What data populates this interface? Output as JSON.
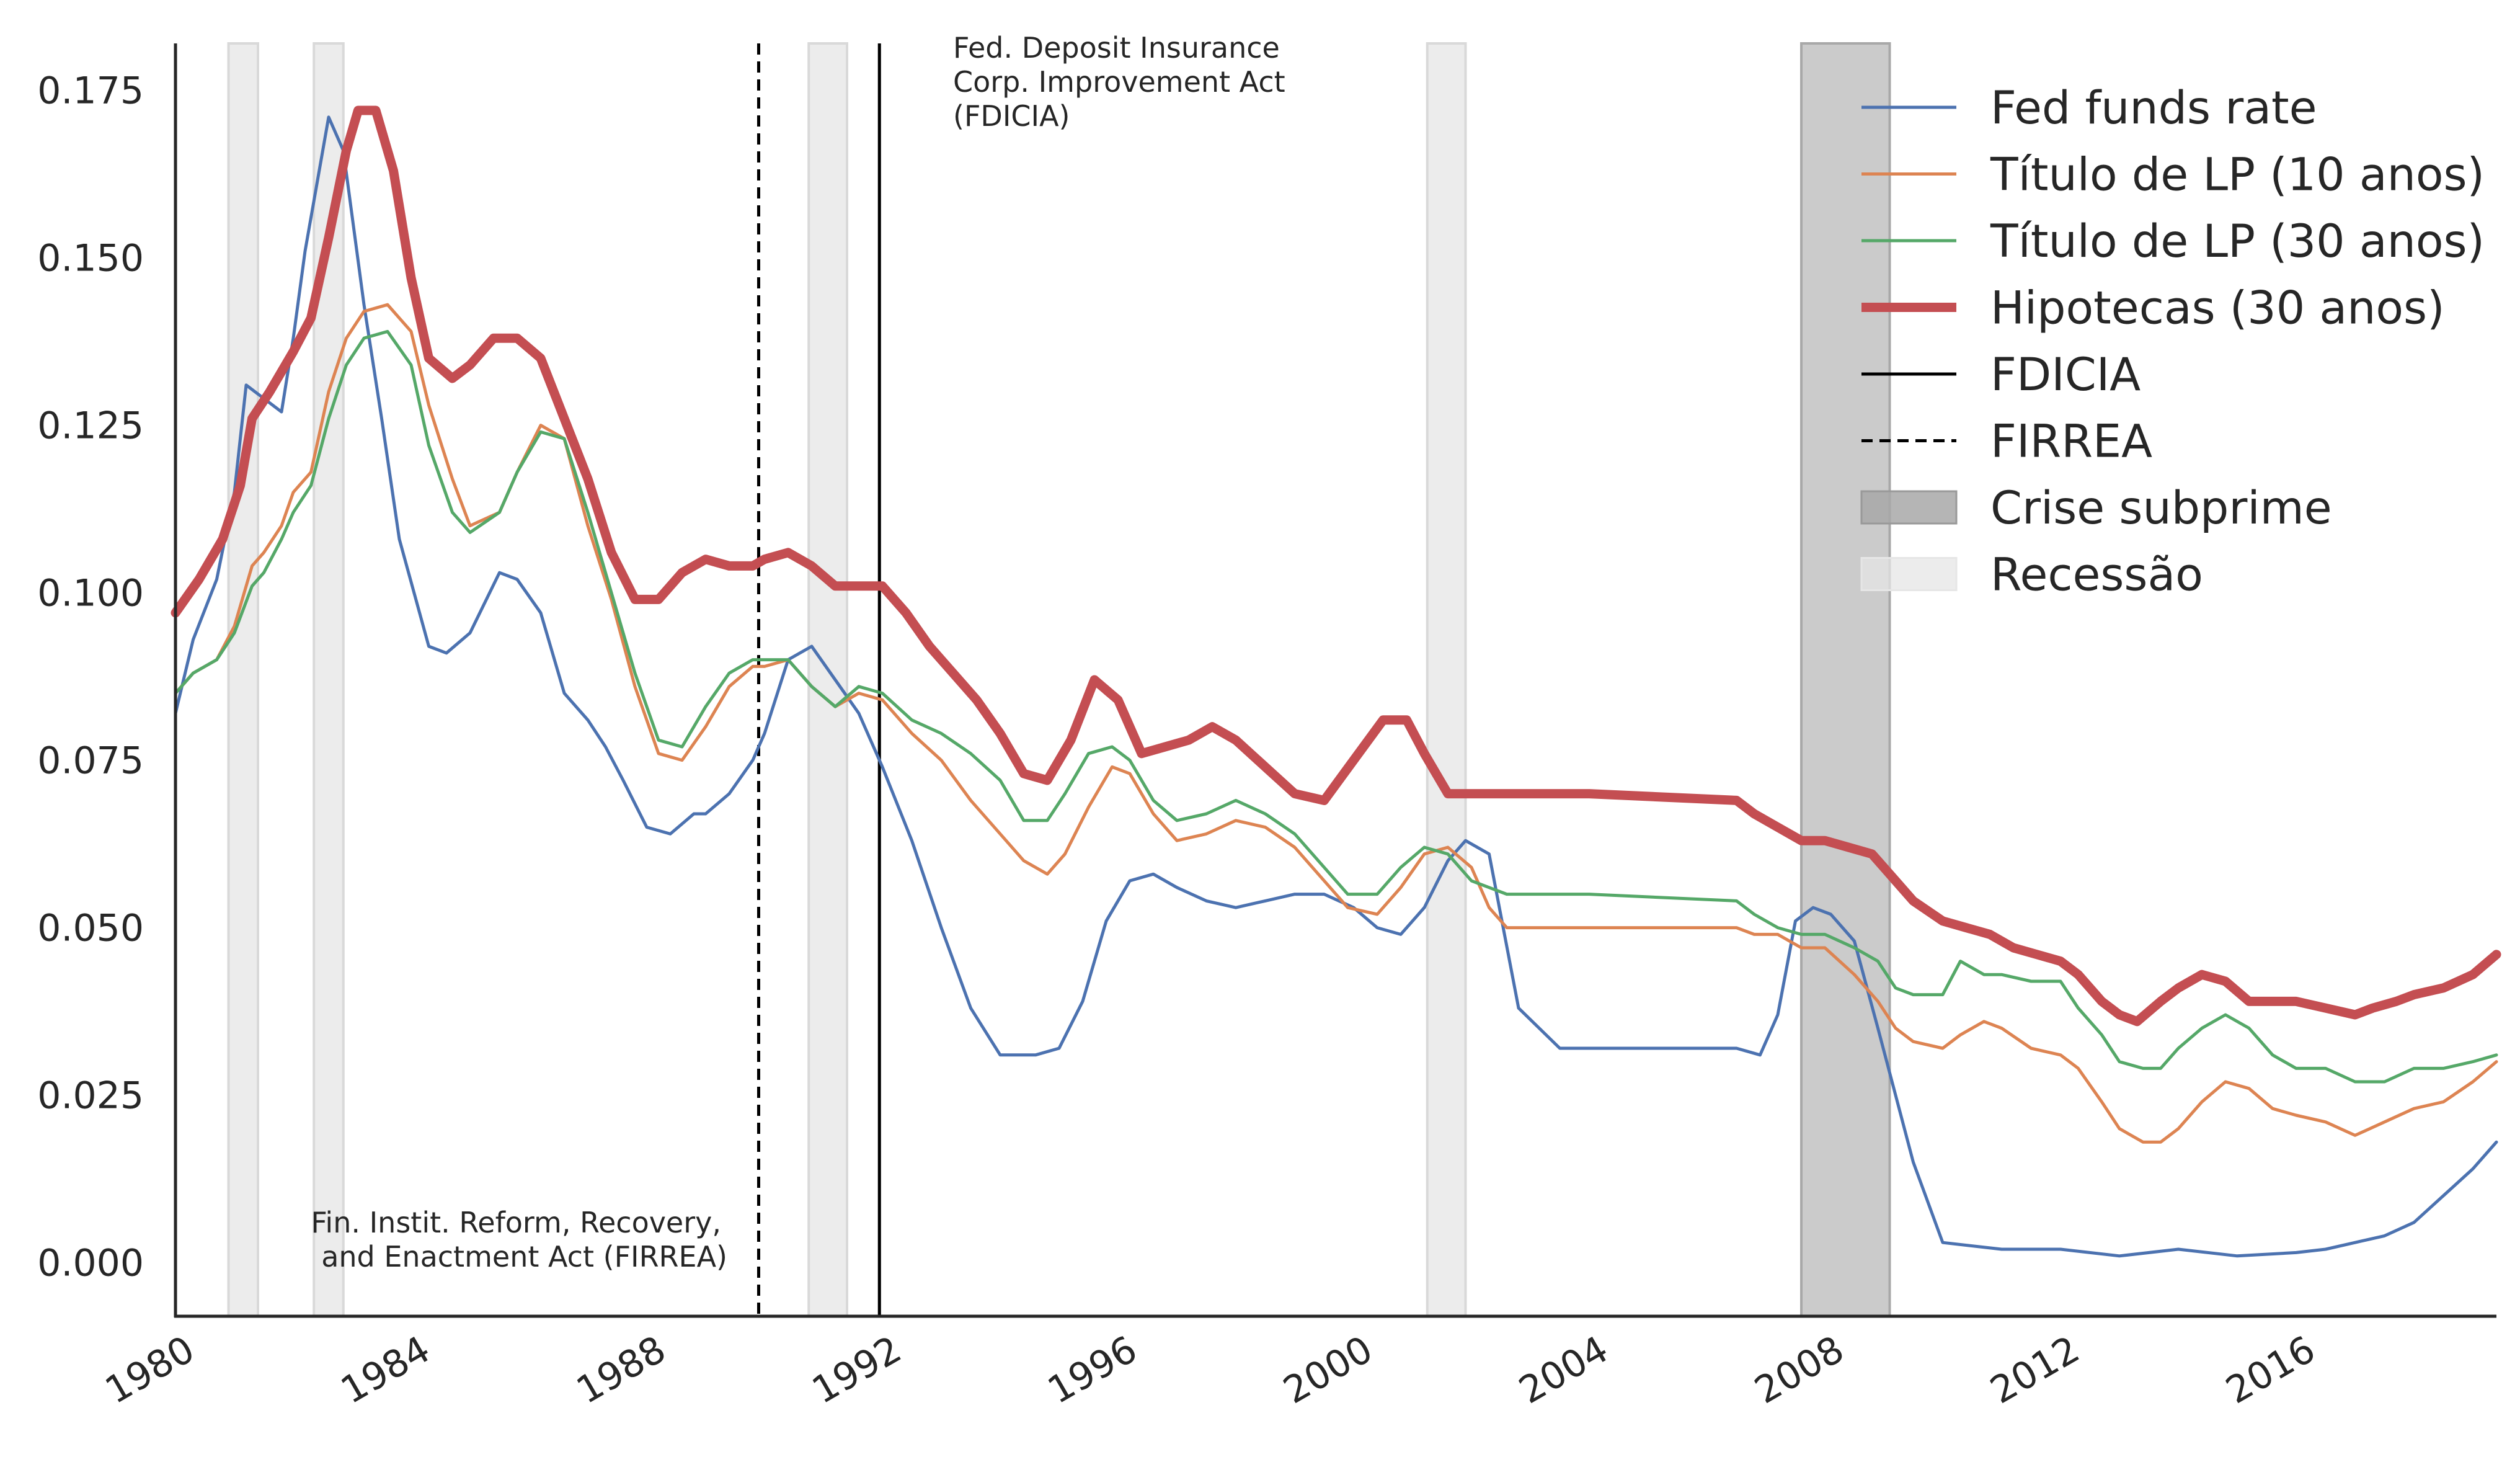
{
  "chart_data": {
    "type": "line",
    "title": "",
    "xlabel": "",
    "ylabel": "",
    "xlim": [
      1980.0,
      2019.4
    ],
    "ylim": [
      -0.008,
      0.182
    ],
    "x_ticks": [
      1980,
      1984,
      1988,
      1992,
      1996,
      2000,
      2004,
      2008,
      2012,
      2016
    ],
    "y_ticks": [
      0.0,
      0.025,
      0.05,
      0.075,
      0.1,
      0.125,
      0.15,
      0.175
    ],
    "y_tick_labels": [
      "0.000",
      "0.025",
      "0.050",
      "0.075",
      "0.100",
      "0.125",
      "0.150",
      "0.175"
    ],
    "grid": false,
    "legend_position": "top-right",
    "series": [
      {
        "name": "Fed funds rate",
        "color": "#4c72b0",
        "x": [
          1980.0,
          1980.3,
          1980.7,
          1981.0,
          1981.2,
          1981.5,
          1981.8,
          1982.0,
          1982.2,
          1982.6,
          1982.85,
          1983.2,
          1983.5,
          1983.8,
          1984.3,
          1984.6,
          1985.0,
          1985.5,
          1985.8,
          1986.2,
          1986.6,
          1987.0,
          1987.3,
          1987.6,
          1988.0,
          1988.4,
          1988.8,
          1989.0,
          1989.4,
          1989.8,
          1990.0,
          1990.4,
          1990.8,
          1991.2,
          1991.6,
          1992.0,
          1992.5,
          1993.0,
          1993.5,
          1994.0,
          1994.6,
          1995.0,
          1995.4,
          1995.8,
          1996.2,
          1996.6,
          1997.0,
          1997.5,
          1998.0,
          1998.5,
          1999.0,
          1999.5,
          2000.0,
          2000.4,
          2000.8,
          2001.2,
          2001.6,
          2001.9,
          2002.3,
          2002.8,
          2003.5,
          2005.0,
          2006.5,
          2006.9,
          2007.2,
          2007.5,
          2007.8,
          2008.1,
          2008.5,
          2008.9,
          2009.2,
          2009.5,
          2010.0,
          2011.0,
          2012.0,
          2013.0,
          2014.0,
          2015.0,
          2016.0,
          2016.5,
          2017.0,
          2017.5,
          2018.0,
          2018.5,
          2019.0,
          2019.4
        ],
        "values": [
          0.082,
          0.093,
          0.102,
          0.115,
          0.131,
          0.129,
          0.127,
          0.138,
          0.151,
          0.171,
          0.166,
          0.143,
          0.126,
          0.108,
          0.092,
          0.091,
          0.094,
          0.103,
          0.102,
          0.097,
          0.085,
          0.081,
          0.077,
          0.072,
          0.065,
          0.064,
          0.067,
          0.067,
          0.07,
          0.075,
          0.079,
          0.09,
          0.092,
          0.087,
          0.082,
          0.074,
          0.063,
          0.05,
          0.038,
          0.031,
          0.031,
          0.032,
          0.039,
          0.051,
          0.057,
          0.058,
          0.056,
          0.054,
          0.053,
          0.054,
          0.055,
          0.055,
          0.053,
          0.05,
          0.049,
          0.053,
          0.06,
          0.063,
          0.061,
          0.038,
          0.032,
          0.032,
          0.032,
          0.031,
          0.037,
          0.051,
          0.053,
          0.052,
          0.048,
          0.035,
          0.025,
          0.015,
          0.003,
          0.002,
          0.002,
          0.001,
          0.002,
          0.001,
          0.0015,
          0.002,
          0.003,
          0.004,
          0.006,
          0.01,
          0.014,
          0.018
        ]
      },
      {
        "name": "Título de LP (10 anos)",
        "color": "#dd8452",
        "x": [
          1980.0,
          1980.3,
          1980.7,
          1981.0,
          1981.3,
          1981.5,
          1981.8,
          1982.0,
          1982.3,
          1982.6,
          1982.9,
          1983.2,
          1983.6,
          1984.0,
          1984.3,
          1984.7,
          1985.0,
          1985.5,
          1985.8,
          1986.2,
          1986.6,
          1987.0,
          1987.4,
          1987.8,
          1988.2,
          1988.6,
          1989.0,
          1989.4,
          1989.8,
          1990.0,
          1990.4,
          1990.8,
          1991.2,
          1991.6,
          1992.0,
          1992.5,
          1993.0,
          1993.5,
          1994.0,
          1994.4,
          1994.8,
          1995.1,
          1995.5,
          1995.9,
          1996.2,
          1996.6,
          1997.0,
          1997.5,
          1998.0,
          1998.5,
          1999.0,
          1999.5,
          1999.9,
          2000.4,
          2000.8,
          2001.2,
          2001.6,
          2002.0,
          2002.3,
          2002.6,
          2004.0,
          2006.5,
          2006.8,
          2007.2,
          2007.6,
          2008.0,
          2008.5,
          2008.9,
          2009.2,
          2009.5,
          2010.0,
          2010.3,
          2010.7,
          2011.0,
          2011.5,
          2012.0,
          2012.3,
          2012.7,
          2013.0,
          2013.4,
          2013.7,
          2014.0,
          2014.4,
          2014.8,
          2015.2,
          2015.6,
          2016.0,
          2016.5,
          2017.0,
          2017.5,
          2018.0,
          2018.5,
          2019.0,
          2019.4
        ],
        "values": [
          0.085,
          0.088,
          0.09,
          0.095,
          0.104,
          0.106,
          0.11,
          0.115,
          0.118,
          0.13,
          0.138,
          0.142,
          0.143,
          0.139,
          0.128,
          0.117,
          0.11,
          0.112,
          0.118,
          0.125,
          0.123,
          0.11,
          0.099,
          0.086,
          0.076,
          0.075,
          0.08,
          0.086,
          0.089,
          0.089,
          0.09,
          0.086,
          0.083,
          0.085,
          0.084,
          0.079,
          0.075,
          0.069,
          0.064,
          0.06,
          0.058,
          0.061,
          0.068,
          0.074,
          0.073,
          0.067,
          0.063,
          0.064,
          0.066,
          0.065,
          0.062,
          0.057,
          0.053,
          0.052,
          0.056,
          0.061,
          0.062,
          0.059,
          0.053,
          0.05,
          0.05,
          0.05,
          0.049,
          0.049,
          0.047,
          0.047,
          0.043,
          0.039,
          0.035,
          0.033,
          0.032,
          0.034,
          0.036,
          0.035,
          0.032,
          0.031,
          0.029,
          0.024,
          0.02,
          0.018,
          0.018,
          0.02,
          0.024,
          0.027,
          0.026,
          0.023,
          0.022,
          0.021,
          0.019,
          0.021,
          0.023,
          0.024,
          0.027,
          0.03
        ]
      },
      {
        "name": "Título de LP (30 anos)",
        "color": "#55a868",
        "x": [
          1980.0,
          1980.3,
          1980.7,
          1981.0,
          1981.3,
          1981.5,
          1981.8,
          1982.0,
          1982.3,
          1982.6,
          1982.9,
          1983.2,
          1983.6,
          1984.0,
          1984.3,
          1984.7,
          1985.0,
          1985.5,
          1985.8,
          1986.2,
          1986.6,
          1987.0,
          1987.4,
          1987.8,
          1988.2,
          1988.6,
          1989.0,
          1989.4,
          1989.8,
          1990.0,
          1990.4,
          1990.8,
          1991.2,
          1991.6,
          1992.0,
          1992.5,
          1993.0,
          1993.5,
          1994.0,
          1994.4,
          1994.8,
          1995.1,
          1995.5,
          1995.9,
          1996.2,
          1996.6,
          1997.0,
          1997.5,
          1998.0,
          1998.5,
          1999.0,
          1999.5,
          1999.9,
          2000.4,
          2000.8,
          2001.2,
          2001.6,
          2002.0,
          2002.3,
          2002.6,
          2004.0,
          2006.5,
          2006.8,
          2007.2,
          2007.6,
          2008.0,
          2008.5,
          2008.9,
          2009.2,
          2009.5,
          2010.0,
          2010.3,
          2010.7,
          2011.0,
          2011.5,
          2012.0,
          2012.3,
          2012.7,
          2013.0,
          2013.4,
          2013.7,
          2014.0,
          2014.4,
          2014.8,
          2015.2,
          2015.6,
          2016.0,
          2016.5,
          2017.0,
          2017.5,
          2018.0,
          2018.5,
          2019.0,
          2019.4
        ],
        "values": [
          0.085,
          0.088,
          0.09,
          0.094,
          0.101,
          0.103,
          0.108,
          0.112,
          0.116,
          0.126,
          0.134,
          0.138,
          0.139,
          0.134,
          0.122,
          0.112,
          0.109,
          0.112,
          0.118,
          0.124,
          0.123,
          0.112,
          0.1,
          0.088,
          0.078,
          0.077,
          0.083,
          0.088,
          0.09,
          0.09,
          0.09,
          0.086,
          0.083,
          0.086,
          0.085,
          0.081,
          0.079,
          0.076,
          0.072,
          0.066,
          0.066,
          0.07,
          0.076,
          0.077,
          0.075,
          0.069,
          0.066,
          0.067,
          0.069,
          0.067,
          0.064,
          0.059,
          0.055,
          0.055,
          0.059,
          0.062,
          0.061,
          0.057,
          0.056,
          0.055,
          0.055,
          0.054,
          0.052,
          0.05,
          0.049,
          0.049,
          0.047,
          0.045,
          0.041,
          0.04,
          0.04,
          0.045,
          0.043,
          0.043,
          0.042,
          0.042,
          0.038,
          0.034,
          0.03,
          0.029,
          0.029,
          0.032,
          0.035,
          0.037,
          0.035,
          0.031,
          0.029,
          0.029,
          0.027,
          0.027,
          0.029,
          0.029,
          0.03,
          0.031
        ]
      },
      {
        "name": "Hipotecas (30 anos)",
        "color": "#c44e52",
        "x": [
          1980.0,
          1980.4,
          1980.8,
          1981.1,
          1981.3,
          1981.6,
          1982.0,
          1982.3,
          1982.6,
          1982.9,
          1983.1,
          1983.4,
          1983.7,
          1984.0,
          1984.3,
          1984.7,
          1985.0,
          1985.4,
          1985.8,
          1986.2,
          1986.6,
          1987.0,
          1987.4,
          1987.8,
          1988.2,
          1988.6,
          1989.0,
          1989.4,
          1989.8,
          1990.0,
          1990.4,
          1990.8,
          1991.2,
          1991.6,
          1992.0,
          1992.4,
          1992.8,
          1993.2,
          1993.6,
          1994.0,
          1994.4,
          1994.8,
          1995.2,
          1995.6,
          1996.0,
          1996.4,
          1996.8,
          1997.2,
          1997.6,
          1998.0,
          1998.5,
          1999.0,
          1999.5,
          2000.0,
          2000.5,
          2000.9,
          2001.2,
          2001.6,
          2002.0,
          2002.4,
          2002.7,
          2004.0,
          2006.5,
          2006.8,
          2007.2,
          2007.6,
          2008.0,
          2008.4,
          2008.8,
          2009.2,
          2009.5,
          2010.0,
          2010.4,
          2010.8,
          2011.2,
          2011.6,
          2012.0,
          2012.3,
          2012.7,
          2013.0,
          2013.3,
          2013.7,
          2014.0,
          2014.4,
          2014.8,
          2015.2,
          2015.6,
          2016.0,
          2016.5,
          2017.0,
          2017.3,
          2017.7,
          2018.0,
          2018.5,
          2019.0,
          2019.4
        ],
        "values": [
          0.097,
          0.102,
          0.108,
          0.116,
          0.126,
          0.13,
          0.136,
          0.141,
          0.153,
          0.166,
          0.172,
          0.172,
          0.163,
          0.147,
          0.135,
          0.132,
          0.134,
          0.138,
          0.138,
          0.135,
          0.126,
          0.117,
          0.106,
          0.099,
          0.099,
          0.103,
          0.105,
          0.104,
          0.104,
          0.105,
          0.106,
          0.104,
          0.101,
          0.101,
          0.101,
          0.097,
          0.092,
          0.088,
          0.084,
          0.079,
          0.073,
          0.072,
          0.078,
          0.087,
          0.084,
          0.076,
          0.077,
          0.078,
          0.08,
          0.078,
          0.074,
          0.07,
          0.069,
          0.075,
          0.081,
          0.081,
          0.076,
          0.07,
          0.07,
          0.07,
          0.07,
          0.07,
          0.069,
          0.067,
          0.065,
          0.063,
          0.063,
          0.062,
          0.061,
          0.057,
          0.054,
          0.051,
          0.05,
          0.049,
          0.047,
          0.046,
          0.045,
          0.043,
          0.039,
          0.037,
          0.036,
          0.039,
          0.041,
          0.043,
          0.042,
          0.039,
          0.039,
          0.039,
          0.038,
          0.037,
          0.038,
          0.039,
          0.04,
          0.041,
          0.043,
          0.046
        ]
      }
    ],
    "vlines": [
      {
        "name": "FDICIA",
        "x": 1991.95,
        "style": "solid",
        "color": "#000000"
      },
      {
        "name": "FIRREA",
        "x": 1989.9,
        "style": "dashed",
        "color": "#000000"
      }
    ],
    "shaded_regions": [
      {
        "name": "Crise subprime",
        "start": 2007.6,
        "end": 2009.1,
        "color": "#a8a8a8",
        "opacity": 0.6
      },
      {
        "name": "Recessão",
        "start": 1980.9,
        "end": 1981.4,
        "color": "#d9d9d9",
        "opacity": 0.5
      },
      {
        "name": "Recessão",
        "start": 1982.35,
        "end": 1982.85,
        "color": "#d9d9d9",
        "opacity": 0.5
      },
      {
        "name": "Recessão",
        "start": 1990.75,
        "end": 1991.4,
        "color": "#d9d9d9",
        "opacity": 0.5
      },
      {
        "name": "Recessão",
        "start": 2001.25,
        "end": 2001.9,
        "color": "#d9d9d9",
        "opacity": 0.5
      }
    ],
    "annotations": {
      "fdicia": [
        "Fed. Deposit Insurance",
        "Corp. Improvement Act",
        "(FDICIA)"
      ],
      "firrea": [
        "Fin. Instit. Reform, Recovery,",
        "and Enactment Act (FIRREA)"
      ]
    },
    "legend": [
      {
        "label": "Fed funds rate",
        "kind": "line",
        "color": "#4c72b0",
        "width": 5
      },
      {
        "label": "Título de LP (10 anos)",
        "kind": "line",
        "color": "#dd8452",
        "width": 5
      },
      {
        "label": "Título de LP (30 anos)",
        "kind": "line",
        "color": "#55a868",
        "width": 5
      },
      {
        "label": "Hipotecas (30 anos)",
        "kind": "line",
        "color": "#c44e52",
        "width": 15
      },
      {
        "label": "FDICIA",
        "kind": "line",
        "color": "#000000",
        "width": 5
      },
      {
        "label": "FIRREA",
        "kind": "dashed",
        "color": "#000000",
        "width": 5
      },
      {
        "label": "Crise subprime",
        "kind": "patch",
        "color": "#a8a8a8"
      },
      {
        "label": "Recessão",
        "kind": "patch",
        "color": "#e6e6e6"
      }
    ]
  }
}
